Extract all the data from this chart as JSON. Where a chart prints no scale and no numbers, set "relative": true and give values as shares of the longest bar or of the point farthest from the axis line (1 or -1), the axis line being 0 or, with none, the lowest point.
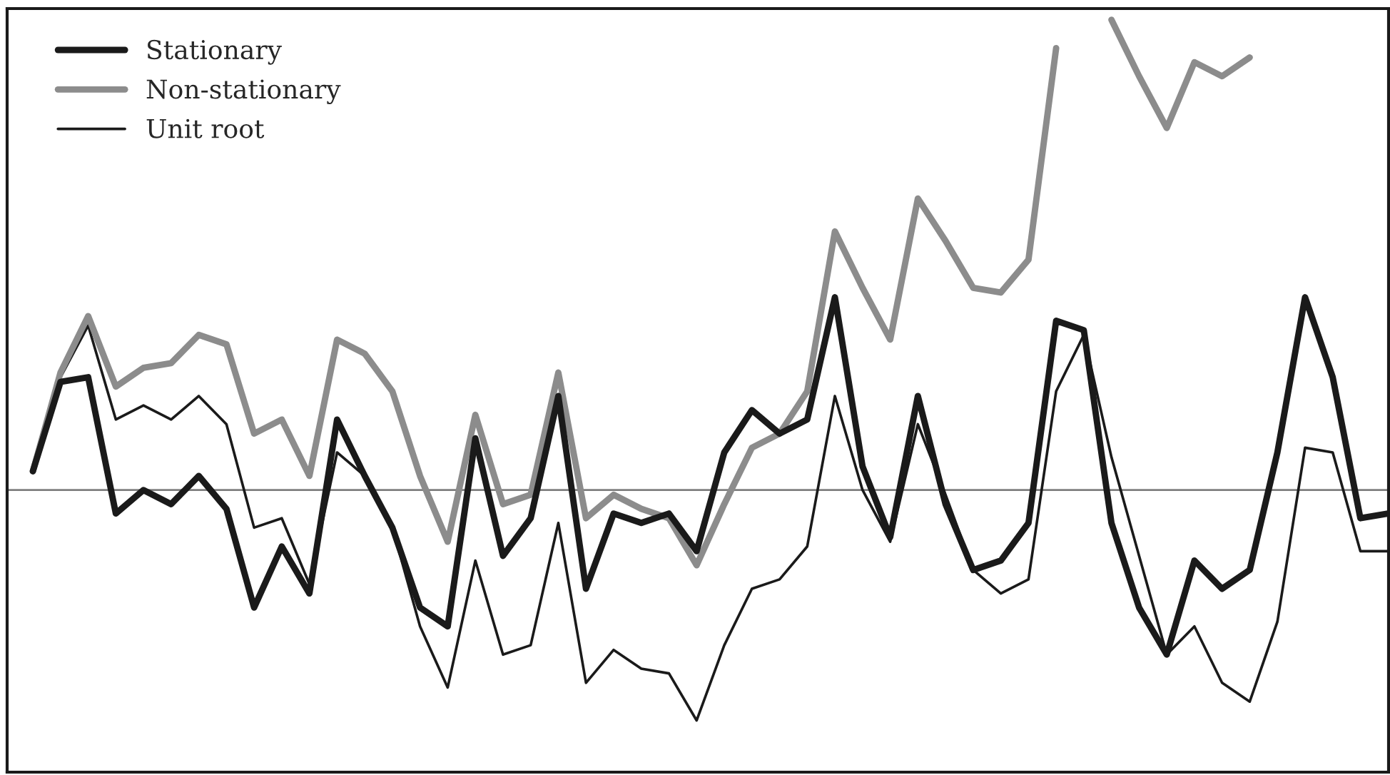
{
  "chart_data": {
    "type": "line",
    "relative": true,
    "legend": "top left",
    "marker": "none",
    "line_style": "solid",
    "categories": [
      null,
      null,
      null,
      null,
      null,
      null,
      null,
      null,
      null,
      null,
      null,
      null,
      null,
      null,
      null,
      null,
      null,
      null,
      null,
      null,
      null,
      null,
      null,
      null,
      null,
      null,
      null,
      null,
      null,
      null,
      null,
      null,
      null,
      null,
      null,
      null,
      null,
      null,
      null,
      null,
      null,
      null,
      null,
      null,
      null,
      null,
      null,
      null,
      null,
      null
    ],
    "series": [
      {
        "name": "Stationary",
        "color": "#1a1a1a",
        "values": [
          0.04,
          0.23,
          0.24,
          -0.05,
          0.0,
          -0.03,
          0.03,
          -0.04,
          -0.25,
          -0.12,
          -0.22,
          0.15,
          0.03,
          -0.08,
          -0.25,
          -0.29,
          0.11,
          -0.14,
          -0.06,
          0.2,
          -0.21,
          -0.05,
          -0.07,
          -0.05,
          -0.13,
          0.08,
          0.17,
          0.12,
          0.15,
          0.41,
          0.05,
          -0.1,
          0.2,
          -0.03,
          -0.17,
          -0.15,
          -0.07,
          0.36,
          0.34,
          -0.07,
          -0.25,
          -0.35,
          -0.15,
          -0.21,
          -0.17,
          0.08,
          0.41,
          0.24,
          -0.06,
          -0.05
        ]
      },
      {
        "name": "Non-stationary",
        "color": "#8c8c8c",
        "values": [
          0.04,
          0.25,
          0.37,
          0.22,
          0.26,
          0.27,
          0.33,
          0.31,
          0.12,
          0.15,
          0.03,
          0.32,
          0.29,
          0.21,
          0.03,
          -0.11,
          0.16,
          -0.03,
          -0.01,
          0.25,
          -0.06,
          -0.01,
          -0.04,
          -0.06,
          -0.16,
          -0.03,
          0.09,
          0.12,
          0.21,
          0.55,
          0.43,
          0.32,
          0.62,
          0.53,
          0.43,
          0.42,
          0.49,
          0.94,
          null,
          1,
          0.88,
          0.77,
          0.91,
          0.88,
          0.92,
          null,
          null,
          null,
          null,
          null
        ]
      },
      {
        "name": "Unit root",
        "color": "#1a1a1a",
        "values": [
          0.04,
          0.24,
          0.35,
          0.15,
          0.18,
          0.15,
          0.2,
          0.14,
          -0.08,
          -0.06,
          -0.2,
          0.08,
          0.03,
          -0.08,
          -0.29,
          -0.42,
          -0.15,
          -0.35,
          -0.33,
          -0.07,
          -0.41,
          -0.34,
          -0.38,
          -0.39,
          -0.49,
          -0.33,
          -0.21,
          -0.19,
          -0.12,
          0.2,
          0.0,
          -0.11,
          0.14,
          -0.01,
          -0.17,
          -0.22,
          -0.19,
          0.21,
          0.33,
          0.07,
          -0.14,
          -0.35,
          -0.29,
          -0.41,
          -0.45,
          -0.28,
          0.09,
          0.08,
          -0.13,
          -0.13
        ]
      }
    ]
  }
}
